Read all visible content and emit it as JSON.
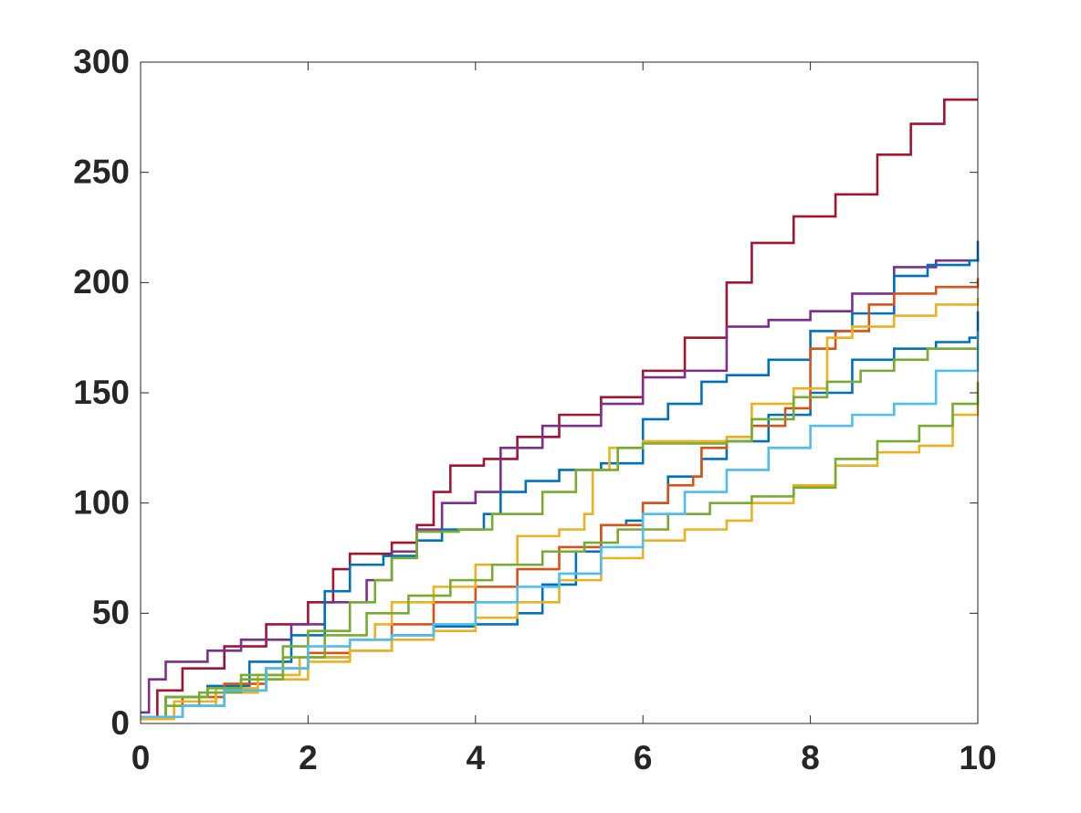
{
  "chart_data": {
    "type": "line",
    "step": true,
    "xlim": [
      0,
      10
    ],
    "ylim": [
      0,
      300
    ],
    "xticks": [
      0,
      2,
      4,
      6,
      8,
      10
    ],
    "yticks": [
      0,
      50,
      100,
      150,
      200,
      250,
      300
    ],
    "grid": false,
    "series": [
      {
        "color": "#A2142F",
        "x": [
          0,
          0.2,
          0.5,
          1,
          1.5,
          2,
          2.3,
          2.5,
          3,
          3.3,
          3.5,
          3.7,
          4.1,
          4.5,
          5,
          5.5,
          6,
          6.5,
          7,
          7.3,
          7.8,
          8.3,
          8.8,
          9.2,
          9.6,
          10
        ],
        "values": [
          3,
          15,
          25,
          35,
          45,
          55,
          70,
          77,
          82,
          90,
          105,
          117,
          120,
          130,
          140,
          148,
          160,
          175,
          200,
          218,
          230,
          240,
          258,
          272,
          283,
          283
        ]
      },
      {
        "color": "#7E2F8E",
        "x": [
          0,
          0.1,
          0.3,
          0.8,
          1.2,
          1.8,
          2.2,
          2.7,
          3,
          3.3,
          3.6,
          4,
          4.3,
          4.8,
          5.5,
          6,
          6.5,
          7,
          7.5,
          8,
          8.5,
          9,
          9.5,
          10
        ],
        "values": [
          5,
          20,
          28,
          33,
          38,
          45,
          55,
          65,
          78,
          88,
          100,
          105,
          125,
          135,
          145,
          157,
          160,
          180,
          183,
          187,
          195,
          207,
          210,
          211
        ]
      },
      {
        "color": "#0072BD",
        "x": [
          0,
          0.3,
          0.8,
          1.3,
          1.8,
          2.2,
          2.5,
          2.9,
          3.3,
          3.6,
          4.1,
          4.3,
          4.6,
          5,
          5.5,
          6,
          6.3,
          6.7,
          7,
          7.5,
          8,
          8.5,
          9,
          9.4,
          9.9,
          10
        ],
        "values": [
          3,
          12,
          17,
          28,
          40,
          60,
          72,
          76,
          83,
          88,
          95,
          105,
          110,
          115,
          118,
          138,
          145,
          155,
          158,
          165,
          178,
          186,
          203,
          208,
          210,
          219
        ]
      },
      {
        "color": "#0072BD",
        "x": [
          0,
          0.5,
          1,
          1.5,
          2,
          2.5,
          3,
          3.5,
          4,
          4.5,
          4.8,
          5.2,
          5.5,
          5.8,
          6,
          6.3,
          6.7,
          7,
          7.5,
          8,
          8.5,
          9,
          9.5,
          9.9,
          10
        ],
        "values": [
          3,
          8,
          15,
          25,
          30,
          33,
          40,
          44,
          45,
          50,
          63,
          78,
          90,
          92,
          100,
          112,
          120,
          128,
          140,
          150,
          165,
          170,
          173,
          175,
          187
        ]
      },
      {
        "color": "#D95319",
        "x": [
          0,
          0.5,
          1,
          1.5,
          2,
          2.5,
          3,
          3.5,
          4,
          4.5,
          5,
          5.5,
          6,
          6.3,
          6.6,
          6.7,
          7,
          7.3,
          7.7,
          8,
          8.3,
          8.7,
          9,
          9.5,
          10
        ],
        "values": [
          3,
          12,
          18,
          25,
          32,
          38,
          45,
          55,
          62,
          70,
          80,
          90,
          100,
          108,
          112,
          125,
          130,
          135,
          143,
          170,
          178,
          190,
          195,
          198,
          202
        ]
      },
      {
        "color": "#EDB120",
        "x": [
          0,
          0.4,
          0.9,
          1.4,
          1.9,
          2.5,
          2.8,
          3,
          3.5,
          4,
          4.5,
          5,
          5.3,
          5.4,
          5.6,
          6,
          6.5,
          7,
          7.3,
          7.8,
          8.2,
          8.5,
          9,
          9.5,
          10
        ],
        "values": [
          3,
          10,
          16,
          22,
          30,
          38,
          45,
          55,
          62,
          72,
          85,
          88,
          95,
          115,
          125,
          128,
          128,
          130,
          145,
          152,
          175,
          180,
          185,
          190,
          193
        ]
      },
      {
        "color": "#EDB120",
        "x": [
          0,
          0.4,
          0.9,
          1.4,
          2,
          2.5,
          3,
          3.5,
          4,
          4.5,
          5,
          5.5,
          6,
          6.5,
          7,
          7.3,
          7.8,
          8.3,
          8.8,
          9.3,
          9.7,
          10
        ],
        "values": [
          2,
          8,
          14,
          20,
          28,
          33,
          38,
          42,
          48,
          55,
          65,
          75,
          83,
          88,
          92,
          100,
          108,
          117,
          123,
          126,
          140,
          147
        ]
      },
      {
        "color": "#77AC30",
        "x": [
          0,
          0.3,
          0.8,
          1.2,
          1.7,
          2,
          2.5,
          2.8,
          3,
          3.3,
          3.8,
          4.2,
          4.8,
          5.2,
          5.7,
          6,
          7,
          7.3,
          7.8,
          8.2,
          8.6,
          9,
          9.4,
          10
        ],
        "values": [
          3,
          12,
          16,
          22,
          35,
          42,
          55,
          65,
          75,
          87,
          88,
          95,
          105,
          115,
          125,
          127,
          128,
          138,
          148,
          155,
          160,
          165,
          170,
          172
        ]
      },
      {
        "color": "#77AC30",
        "x": [
          0,
          0.3,
          0.7,
          1.2,
          1.7,
          2.2,
          2.7,
          3.2,
          3.7,
          4.2,
          4.8,
          5.3,
          5.7,
          6.3,
          6.8,
          7.3,
          7.8,
          8.3,
          8.8,
          9.3,
          9.7,
          10
        ],
        "values": [
          3,
          8,
          14,
          20,
          30,
          40,
          50,
          58,
          65,
          72,
          78,
          82,
          88,
          95,
          100,
          103,
          107,
          120,
          128,
          135,
          145,
          155
        ]
      },
      {
        "color": "#4DBEEE",
        "x": [
          0,
          0.5,
          1,
          1.5,
          2,
          2.5,
          3,
          3.5,
          4,
          4.5,
          5,
          5.5,
          6,
          6.5,
          7,
          7.5,
          8,
          8.5,
          9,
          9.5,
          10
        ],
        "values": [
          3,
          8,
          15,
          25,
          35,
          38,
          40,
          45,
          55,
          62,
          68,
          80,
          95,
          105,
          115,
          125,
          135,
          140,
          145,
          160,
          178
        ]
      }
    ]
  }
}
